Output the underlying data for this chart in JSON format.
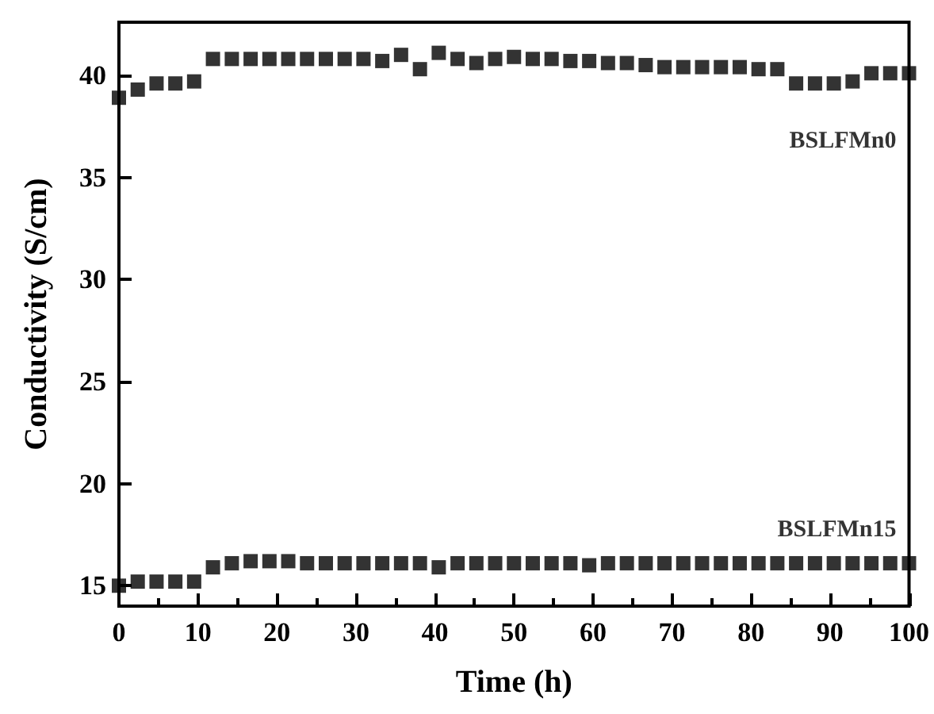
{
  "chart_data": {
    "type": "scatter",
    "xlabel": "Time (h)",
    "ylabel": "Conductivity (S/cm)",
    "x": [
      0,
      2.38,
      4.76,
      7.14,
      9.52,
      11.9,
      14.29,
      16.67,
      19.05,
      21.43,
      23.81,
      26.19,
      28.57,
      30.95,
      33.33,
      35.71,
      38.1,
      40.48,
      42.86,
      45.24,
      47.62,
      50,
      52.38,
      54.76,
      57.14,
      59.52,
      61.9,
      64.29,
      66.67,
      69.05,
      71.43,
      73.81,
      76.19,
      78.57,
      80.95,
      83.33,
      85.71,
      88.1,
      90.48,
      92.86,
      95.24,
      97.62,
      100
    ],
    "series": [
      {
        "name": "BSLFMn0",
        "color": "#000000",
        "values": [
          38.9,
          39.3,
          39.6,
          39.6,
          39.7,
          40.8,
          40.8,
          40.8,
          40.8,
          40.8,
          40.8,
          40.8,
          40.8,
          40.8,
          40.7,
          41.0,
          40.3,
          41.1,
          40.8,
          40.6,
          40.8,
          40.9,
          40.8,
          40.8,
          40.7,
          40.7,
          40.6,
          40.6,
          40.5,
          40.4,
          40.4,
          40.4,
          40.4,
          40.4,
          40.3,
          40.3,
          39.6,
          39.6,
          39.6,
          39.7,
          40.1,
          40.1,
          40.1
        ]
      },
      {
        "name": "BSLFMn15",
        "color": "#000000",
        "values": [
          15.0,
          15.2,
          15.2,
          15.2,
          15.2,
          15.9,
          16.1,
          16.2,
          16.2,
          16.2,
          16.1,
          16.1,
          16.1,
          16.1,
          16.1,
          16.1,
          16.1,
          15.9,
          16.1,
          16.1,
          16.1,
          16.1,
          16.1,
          16.1,
          16.1,
          16.0,
          16.1,
          16.1,
          16.1,
          16.1,
          16.1,
          16.1,
          16.1,
          16.1,
          16.1,
          16.1,
          16.1,
          16.1,
          16.1,
          16.1,
          16.1,
          16.1,
          16.1
        ]
      }
    ],
    "xlim": [
      0,
      100
    ],
    "xticks": [
      0,
      10,
      20,
      30,
      40,
      50,
      60,
      70,
      80,
      90,
      100
    ],
    "ylim": [
      14,
      42.6
    ],
    "yticks": [
      15,
      20,
      25,
      30,
      35,
      40
    ],
    "marker": "square",
    "grid": false,
    "legend": false
  }
}
